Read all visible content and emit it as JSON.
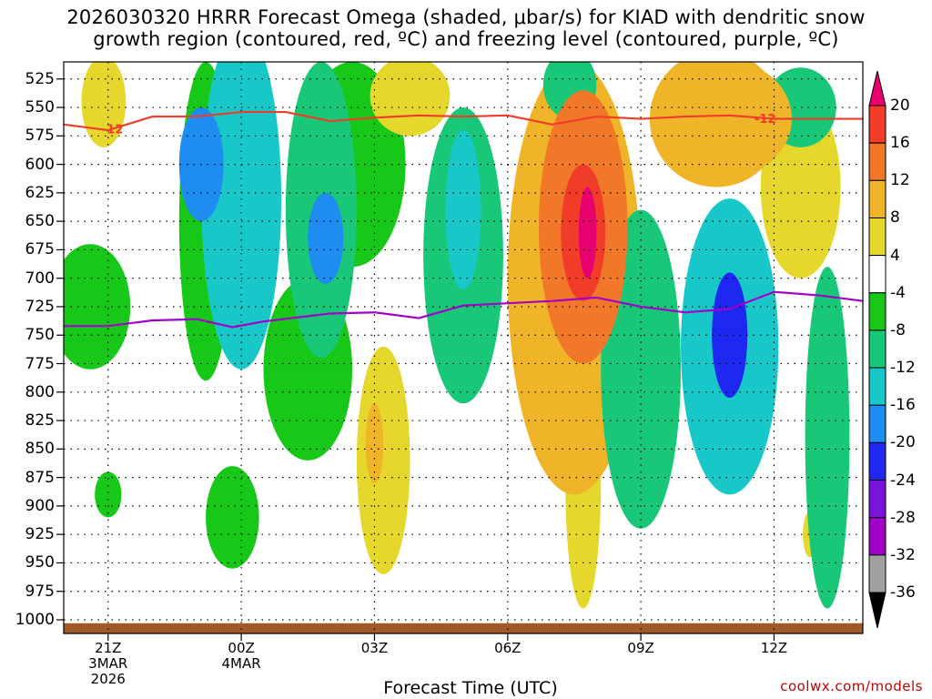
{
  "chart_data": {
    "type": "heatmap",
    "title_line1": "2026030320 HRRR Forecast Omega (shaded, μbar/s) for KIAD with dendritic snow",
    "title_line2": "growth region (contoured, red, ºC) and freezing level (contoured, purple, ºC)",
    "xlabel": "Forecast Time (UTC)",
    "ylabel": "",
    "credit": "coolwx.com/models",
    "x_ticks": [
      {
        "hour": 0,
        "label": "21Z",
        "sub1": "3MAR",
        "sub2": "2026"
      },
      {
        "hour": 3,
        "label": "00Z",
        "sub1": "4MAR",
        "sub2": ""
      },
      {
        "hour": 6,
        "label": "03Z",
        "sub1": "",
        "sub2": ""
      },
      {
        "hour": 9,
        "label": "06Z",
        "sub1": "",
        "sub2": ""
      },
      {
        "hour": 12,
        "label": "09Z",
        "sub1": "",
        "sub2": ""
      },
      {
        "hour": 15,
        "label": "12Z",
        "sub1": "",
        "sub2": ""
      }
    ],
    "x_range_hours": [
      -1,
      17
    ],
    "y_levels_hPa": [
      525,
      550,
      575,
      600,
      625,
      650,
      675,
      700,
      725,
      750,
      775,
      800,
      825,
      850,
      875,
      900,
      925,
      950,
      975,
      1000
    ],
    "y_range_hPa": [
      510,
      1012
    ],
    "colorbar": {
      "ticks": [
        20,
        16,
        12,
        8,
        4,
        -4,
        -8,
        -12,
        -16,
        -20,
        -24,
        -28,
        -32,
        -36
      ],
      "colors": [
        "#e8006e",
        "#f03c28",
        "#f07828",
        "#f0b428",
        "#e6d72c",
        "#ffffff",
        "#18c818",
        "#18c878",
        "#18c8c8",
        "#1e8cf0",
        "#1e28f0",
        "#7814dc",
        "#a000c8",
        "#a0a0a0",
        "#000000"
      ]
    },
    "omega_cells": [
      {
        "t": -0.1,
        "p": 545,
        "rt": 0.5,
        "rp": 40,
        "v": 6
      },
      {
        "t": -0.4,
        "p": 725,
        "rt": 0.9,
        "rp": 55,
        "v": -6
      },
      {
        "t": 0.0,
        "p": 890,
        "rt": 0.3,
        "rp": 20,
        "v": -6
      },
      {
        "t": 3.0,
        "p": 630,
        "rt": 0.9,
        "rp": 150,
        "v": -12
      },
      {
        "t": 2.2,
        "p": 650,
        "rt": 0.6,
        "rp": 140,
        "v": -6
      },
      {
        "t": 4.8,
        "p": 640,
        "rt": 0.8,
        "rp": 130,
        "v": -10
      },
      {
        "t": 4.5,
        "p": 780,
        "rt": 1.0,
        "rp": 80,
        "v": -6
      },
      {
        "t": 5.5,
        "p": 600,
        "rt": 1.2,
        "rp": 90,
        "v": -6
      },
      {
        "t": 2.1,
        "p": 600,
        "rt": 0.5,
        "rp": 50,
        "v": -16
      },
      {
        "t": 4.9,
        "p": 665,
        "rt": 0.4,
        "rp": 40,
        "v": -18
      },
      {
        "t": 2.8,
        "p": 910,
        "rt": 0.6,
        "rp": 45,
        "v": -6
      },
      {
        "t": 6.8,
        "p": 540,
        "rt": 0.9,
        "rp": 35,
        "v": 6
      },
      {
        "t": 6.2,
        "p": 860,
        "rt": 0.6,
        "rp": 100,
        "v": 6
      },
      {
        "t": 6.0,
        "p": 845,
        "rt": 0.2,
        "rp": 35,
        "v": 10
      },
      {
        "t": 8.0,
        "p": 680,
        "rt": 0.9,
        "rp": 130,
        "v": -10
      },
      {
        "t": 8.0,
        "p": 640,
        "rt": 0.4,
        "rp": 70,
        "v": -14
      },
      {
        "t": 10.5,
        "p": 700,
        "rt": 1.5,
        "rp": 190,
        "v": 8
      },
      {
        "t": 10.7,
        "p": 655,
        "rt": 1.0,
        "rp": 120,
        "v": 12
      },
      {
        "t": 10.7,
        "p": 660,
        "rt": 0.5,
        "rp": 60,
        "v": 16
      },
      {
        "t": 10.8,
        "p": 660,
        "rt": 0.2,
        "rp": 40,
        "v": 20
      },
      {
        "t": 10.7,
        "p": 880,
        "rt": 0.4,
        "rp": 110,
        "v": 6
      },
      {
        "t": 10.4,
        "p": 530,
        "rt": 0.6,
        "rp": 30,
        "v": -10
      },
      {
        "t": 12.0,
        "p": 780,
        "rt": 0.9,
        "rp": 140,
        "v": -10
      },
      {
        "t": 14.0,
        "p": 760,
        "rt": 1.1,
        "rp": 130,
        "v": -12
      },
      {
        "t": 14.0,
        "p": 750,
        "rt": 0.4,
        "rp": 55,
        "v": -20
      },
      {
        "t": 13.7,
        "p": 560,
        "rt": 1.5,
        "rp": 60,
        "v": 8
      },
      {
        "t": 14.0,
        "p": 560,
        "rt": 1.4,
        "rp": 50,
        "v": 10
      },
      {
        "t": 15.6,
        "p": 620,
        "rt": 0.9,
        "rp": 80,
        "v": 6
      },
      {
        "t": 15.6,
        "p": 550,
        "rt": 0.8,
        "rp": 35,
        "v": -8
      },
      {
        "t": 16.2,
        "p": 840,
        "rt": 0.5,
        "rp": 150,
        "v": -8
      },
      {
        "t": 15.8,
        "p": 925,
        "rt": 0.15,
        "rp": 20,
        "v": 6
      }
    ],
    "dgz_minus12_line": {
      "color": "#f03c28",
      "label": "-12",
      "label_hours": [
        0.1,
        14.8
      ],
      "points": [
        [
          -1,
          565
        ],
        [
          0,
          570
        ],
        [
          1,
          558
        ],
        [
          2,
          558
        ],
        [
          3,
          554
        ],
        [
          4,
          554
        ],
        [
          5,
          562
        ],
        [
          6,
          559
        ],
        [
          7,
          557
        ],
        [
          8,
          558
        ],
        [
          9,
          557
        ],
        [
          10,
          565
        ],
        [
          11,
          558
        ],
        [
          12,
          560
        ],
        [
          13,
          558
        ],
        [
          14,
          557
        ],
        [
          15,
          560
        ],
        [
          16,
          560
        ],
        [
          17,
          560
        ]
      ]
    },
    "freezing_level_line": {
      "color": "#a000c8",
      "points": [
        [
          -1,
          742
        ],
        [
          0,
          742
        ],
        [
          1,
          737
        ],
        [
          2,
          736
        ],
        [
          2.8,
          743
        ],
        [
          3.5,
          738
        ],
        [
          5,
          731
        ],
        [
          6,
          730
        ],
        [
          7,
          735
        ],
        [
          8,
          724
        ],
        [
          9,
          722
        ],
        [
          10,
          720
        ],
        [
          11,
          717
        ],
        [
          12,
          725
        ],
        [
          13,
          730
        ],
        [
          14,
          727
        ],
        [
          15,
          712
        ],
        [
          16,
          715
        ],
        [
          17,
          720
        ]
      ]
    },
    "ground_color": "#a05a28"
  }
}
